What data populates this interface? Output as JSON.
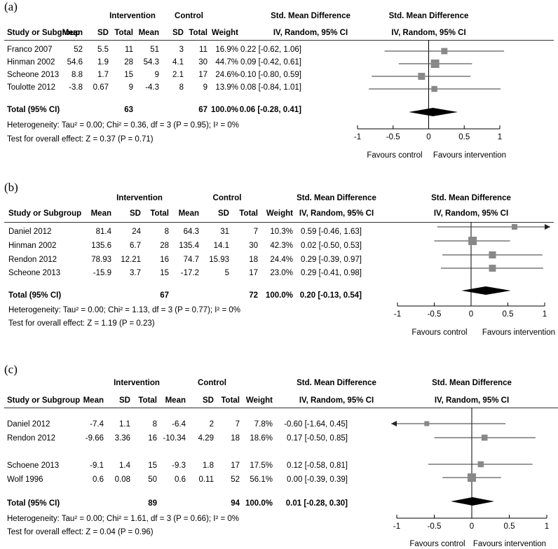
{
  "panels": [
    {
      "label": "(a)",
      "headers": {
        "intervention": "Intervention",
        "control": "Control",
        "study": "Study or Subgroup",
        "mean": "Mean",
        "sd": "SD",
        "total": "Total",
        "weight": "Weight",
        "smd": "Std. Mean Difference",
        "method": "IV, Random, 95% CI"
      },
      "rows": [
        {
          "study": "Franco 2007",
          "i_mean": "52",
          "i_sd": "5.5",
          "i_total": "11",
          "c_mean": "51",
          "c_sd": "3",
          "c_total": "11",
          "weight": "16.9%",
          "ci": "0.22 [-0.62, 1.06]"
        },
        {
          "study": "Hinman 2002",
          "i_mean": "54.6",
          "i_sd": "1.9",
          "i_total": "28",
          "c_mean": "54.3",
          "c_sd": "4.1",
          "c_total": "30",
          "weight": "44.7%",
          "ci": "0.09 [-0.42, 0.61]"
        },
        {
          "study": "Scheone 2013",
          "i_mean": "8.8",
          "i_sd": "1.7",
          "i_total": "15",
          "c_mean": "9",
          "c_sd": "2.1",
          "c_total": "17",
          "weight": "24.6%",
          "ci": "-0.10 [-0.80, 0.59]"
        },
        {
          "study": "Toulotte 2012",
          "i_mean": "-3.8",
          "i_sd": "0.67",
          "i_total": "9",
          "c_mean": "-4.3",
          "c_sd": "8",
          "c_total": "9",
          "weight": "13.9%",
          "ci": "0.08 [-0.84, 1.01]"
        }
      ],
      "total": {
        "label": "Total (95% CI)",
        "i_total": "63",
        "c_total": "67",
        "weight": "100.0%",
        "ci": "0.06 [-0.28, 0.41]"
      },
      "heterogeneity": "Heterogeneity: Tau² = 0.00; Chi² = 0.36, df = 3 (P = 0.95); I² = 0%",
      "overall": "Test for overall effect: Z = 0.37 (P = 0.71)",
      "favours_left": "Favours control",
      "favours_right": "Favours intervention",
      "ticks": [
        "-1",
        "-0.5",
        "0",
        "0.5",
        "1"
      ]
    },
    {
      "label": "(b)",
      "headers": {
        "intervention": "Intervention",
        "control": "Control",
        "study": "Study or Subgroup",
        "mean": "Mean",
        "sd": "SD",
        "total": "Total",
        "weight": "Weight",
        "smd": "Std. Mean Difference",
        "method": "IV, Random, 95% CI"
      },
      "rows": [
        {
          "study": "Daniel 2012",
          "i_mean": "81.4",
          "i_sd": "24",
          "i_total": "8",
          "c_mean": "64.3",
          "c_sd": "31",
          "c_total": "7",
          "weight": "10.3%",
          "ci": "0.59 [-0.46, 1.63]"
        },
        {
          "study": "Hinman 2002",
          "i_mean": "135.6",
          "i_sd": "6.7",
          "i_total": "28",
          "c_mean": "135.4",
          "c_sd": "14.1",
          "c_total": "30",
          "weight": "42.3%",
          "ci": "0.02 [-0.50, 0.53]"
        },
        {
          "study": "Rendon 2012",
          "i_mean": "78.93",
          "i_sd": "12.21",
          "i_total": "16",
          "c_mean": "74.7",
          "c_sd": "15.93",
          "c_total": "18",
          "weight": "24.4%",
          "ci": "0.29 [-0.39, 0.97]"
        },
        {
          "study": "Scheone 2013",
          "i_mean": "-15.9",
          "i_sd": "3.7",
          "i_total": "15",
          "c_mean": "-17.2",
          "c_sd": "5",
          "c_total": "17",
          "weight": "23.0%",
          "ci": "0.29 [-0.41, 0.98]"
        }
      ],
      "total": {
        "label": "Total (95% CI)",
        "i_total": "67",
        "c_total": "72",
        "weight": "100.0%",
        "ci": "0.20 [-0.13, 0.54]"
      },
      "heterogeneity": "Heterogeneity: Tau² = 0.00; Chi² = 1.13, df = 3 (P = 0.77); I² = 0%",
      "overall": "Test for overall effect: Z = 1.19 (P = 0.23)",
      "favours_left": "Favours control",
      "favours_right": "Favours intervention",
      "ticks": [
        "-1",
        "-0.5",
        "0",
        "0.5",
        "1"
      ]
    },
    {
      "label": "(c)",
      "headers": {
        "intervention": "Intervention",
        "control": "Control",
        "study": "Study or Subgroup",
        "mean": "Mean",
        "sd": "SD",
        "total": "Total",
        "weight": "Weight",
        "smd": "Std. Mean Difference",
        "method": "IV, Random, 95% CI"
      },
      "rows": [
        {
          "study": "Daniel 2012",
          "i_mean": "-7.4",
          "i_sd": "1.1",
          "i_total": "8",
          "c_mean": "-6.4",
          "c_sd": "2",
          "c_total": "7",
          "weight": "7.8%",
          "ci": "-0.60 [-1.64, 0.45]"
        },
        {
          "study": "Rendon 2012",
          "i_mean": "-9.66",
          "i_sd": "3.36",
          "i_total": "16",
          "c_mean": "-10.34",
          "c_sd": "4.29",
          "c_total": "18",
          "weight": "18.6%",
          "ci": "0.17 [-0.50, 0.85]"
        },
        {
          "study": "Schoene 2013",
          "i_mean": "-9.1",
          "i_sd": "1.4",
          "i_total": "15",
          "c_mean": "-9.3",
          "c_sd": "1.8",
          "c_total": "17",
          "weight": "17.5%",
          "ci": "0.12 [-0.58, 0.81]"
        },
        {
          "study": "Wolf 1996",
          "i_mean": "0.6",
          "i_sd": "0.08",
          "i_total": "50",
          "c_mean": "0.6",
          "c_sd": "0.11",
          "c_total": "52",
          "weight": "56.1%",
          "ci": "0.00 [-0.39, 0.39]"
        }
      ],
      "total": {
        "label": "Total (95% CI)",
        "i_total": "89",
        "c_total": "94",
        "weight": "100.0%",
        "ci": "0.01 [-0.28, 0.30]"
      },
      "heterogeneity": "Heterogeneity: Tau² = 0.00; Chi² = 1.61, df = 3 (P = 0.66); I² = 0%",
      "overall": "Test for overall effect: Z = 0.04 (P = 0.96)",
      "favours_left": "Favours control",
      "favours_right": "Favours intervention",
      "ticks": [
        "-1",
        "-0.5",
        "0",
        "0.5",
        "1"
      ]
    }
  ],
  "chart_data": [
    {
      "type": "forest",
      "xlim": [
        -1,
        1
      ],
      "marker_color": "#888888",
      "studies": [
        {
          "name": "Franco 2007",
          "est": 0.22,
          "lo": -0.62,
          "hi": 1.06,
          "weight": 16.9
        },
        {
          "name": "Hinman 2002",
          "est": 0.09,
          "lo": -0.42,
          "hi": 0.61,
          "weight": 44.7
        },
        {
          "name": "Scheone 2013",
          "est": -0.1,
          "lo": -0.8,
          "hi": 0.59,
          "weight": 24.6
        },
        {
          "name": "Toulotte 2012",
          "est": 0.08,
          "lo": -0.84,
          "hi": 1.01,
          "weight": 13.9
        }
      ],
      "pooled": {
        "est": 0.06,
        "lo": -0.28,
        "hi": 0.41
      }
    },
    {
      "type": "forest",
      "xlim": [
        -1,
        1
      ],
      "marker_color": "#888888",
      "studies": [
        {
          "name": "Daniel 2012",
          "est": 0.59,
          "lo": -0.46,
          "hi": 1.63,
          "weight": 10.3
        },
        {
          "name": "Hinman 2002",
          "est": 0.02,
          "lo": -0.5,
          "hi": 0.53,
          "weight": 42.3
        },
        {
          "name": "Rendon 2012",
          "est": 0.29,
          "lo": -0.39,
          "hi": 0.97,
          "weight": 24.4
        },
        {
          "name": "Scheone 2013",
          "est": 0.29,
          "lo": -0.41,
          "hi": 0.98,
          "weight": 23.0
        }
      ],
      "pooled": {
        "est": 0.2,
        "lo": -0.13,
        "hi": 0.54
      }
    },
    {
      "type": "forest",
      "xlim": [
        -1,
        1
      ],
      "marker_color": "#888888",
      "studies": [
        {
          "name": "Daniel 2012",
          "est": -0.6,
          "lo": -1.64,
          "hi": 0.45,
          "weight": 7.8
        },
        {
          "name": "Rendon 2012",
          "est": 0.17,
          "lo": -0.5,
          "hi": 0.85,
          "weight": 18.6
        },
        {
          "name": "Schoene 2013",
          "est": 0.12,
          "lo": -0.58,
          "hi": 0.81,
          "weight": 17.5
        },
        {
          "name": "Wolf 1996",
          "est": 0.0,
          "lo": -0.39,
          "hi": 0.39,
          "weight": 56.1
        }
      ],
      "pooled": {
        "est": 0.01,
        "lo": -0.28,
        "hi": 0.3
      }
    }
  ]
}
